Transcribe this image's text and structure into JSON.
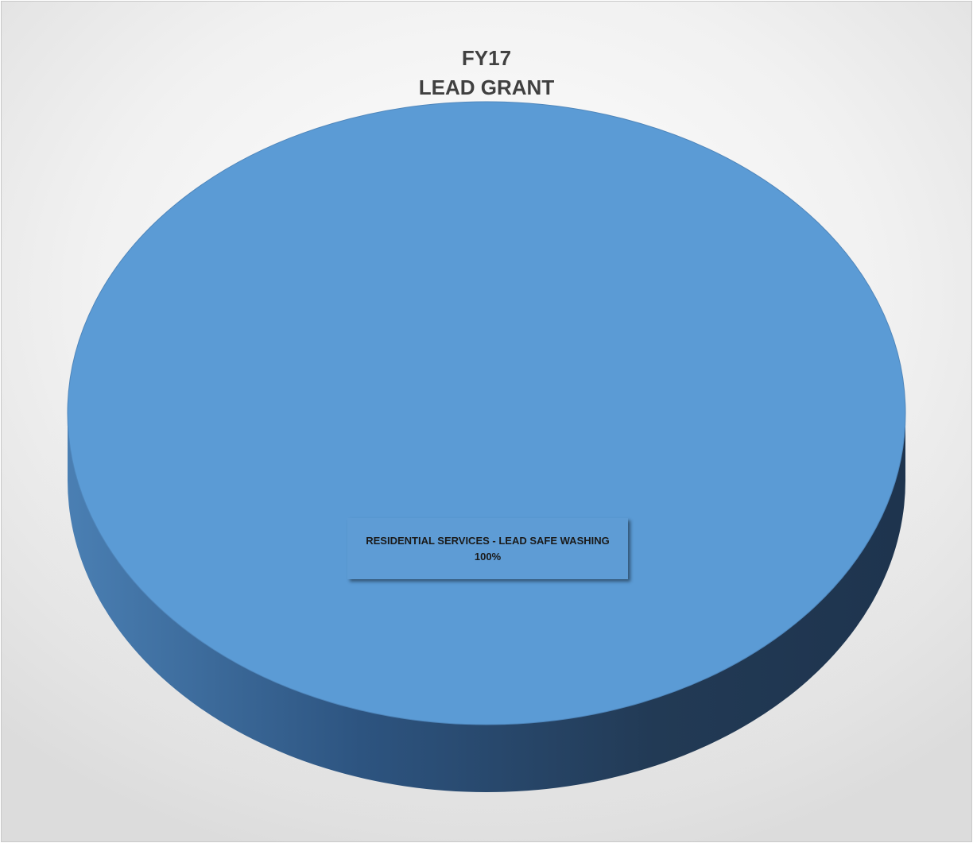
{
  "chart_data": {
    "type": "pie",
    "title": [
      "FY17",
      "LEAD GRANT"
    ],
    "categories": [
      "RESIDENTIAL SERVICES - LEAD SAFE WASHING"
    ],
    "values": [
      100
    ],
    "data_labels": [
      {
        "category": "RESIDENTIAL SERVICES - LEAD SAFE WASHING",
        "percent": "100%"
      }
    ],
    "style": "3d",
    "legend": "none",
    "colors": {
      "slice": "#5b9bd5"
    }
  }
}
